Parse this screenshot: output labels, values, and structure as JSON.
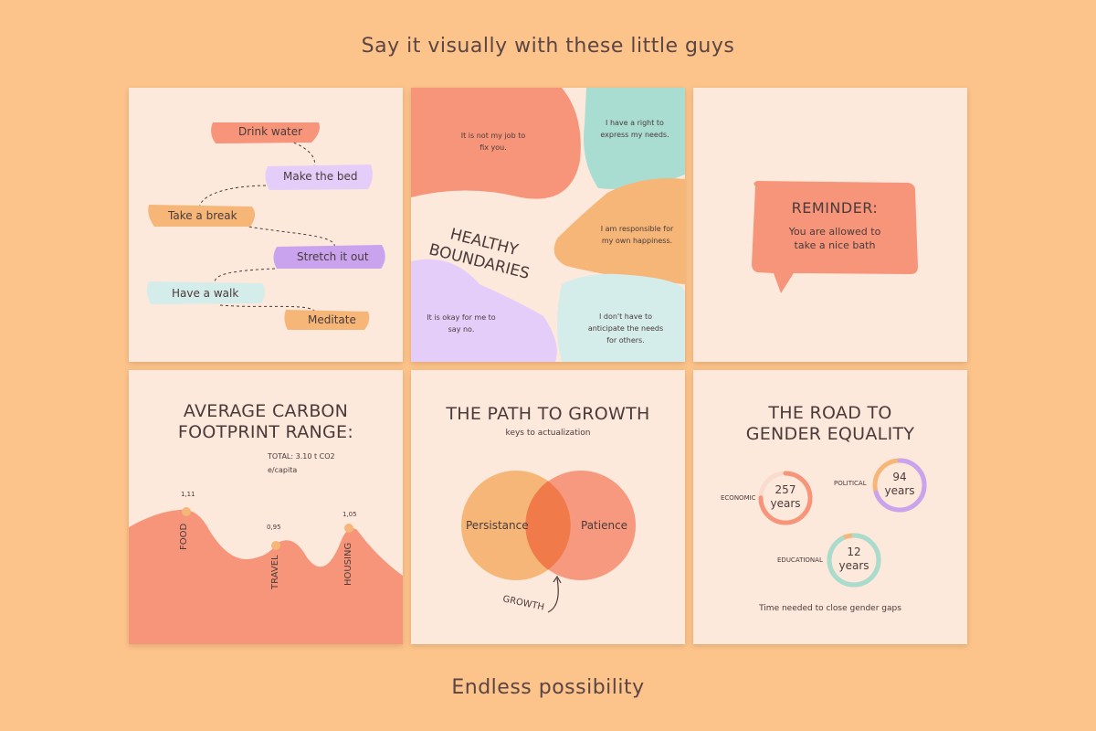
{
  "header": {
    "title": "Say it visually with these little guys"
  },
  "footer": {
    "caption": "Endless possibility"
  },
  "todo_card": {
    "items": [
      "Drink water",
      "Make the bed",
      "Take a break",
      "Stretch it out",
      "Have a walk",
      "Meditate"
    ]
  },
  "boundaries_card": {
    "title_line1": "HEALTHY",
    "title_line2": "BOUNDARIES",
    "blobs": [
      {
        "line1": "It is not my job to",
        "line2": "fix you.",
        "line3": ""
      },
      {
        "line1": "I have a right to",
        "line2": "express my needs.",
        "line3": ""
      },
      {
        "line1": "I am responsible for",
        "line2": "my own happiness.",
        "line3": ""
      },
      {
        "line1": "It is okay for me to",
        "line2": "say no.",
        "line3": ""
      },
      {
        "line1": "I don't have to",
        "line2": "anticipate the needs",
        "line3": "for others."
      }
    ]
  },
  "reminder_card": {
    "title": "REMINDER:",
    "line1": "You are allowed to",
    "line2": "take a nice bath"
  },
  "carbon_card": {
    "title_line1": "AVERAGE CARBON",
    "title_line2": "FOOTPRINT RANGE:",
    "total_line1": "TOTAL: 3.10 t CO2",
    "total_line2": "e/capita",
    "points": [
      {
        "label": "FOOD",
        "value": "1,11"
      },
      {
        "label": "TRAVEL",
        "value": "0,95"
      },
      {
        "label": "HOUSING",
        "value": "1,05"
      }
    ]
  },
  "growth_card": {
    "title": "THE PATH TO GROWTH",
    "subtitle": "keys to actualization",
    "left_label": "Persistance",
    "right_label": "Patience",
    "intersection_label": "GROWTH"
  },
  "gender_card": {
    "title_line1": "THE ROAD TO",
    "title_line2": "GENDER EQUALITY",
    "rings": [
      {
        "category": "ECONOMIC",
        "number": "257",
        "unit": "years",
        "color": "#f7957a",
        "progress": 0.75
      },
      {
        "category": "POLITICAL",
        "number": "94",
        "unit": "years",
        "color": "#c9a3ee",
        "progress": 0.7
      },
      {
        "category": "EDUCATIONAL",
        "number": "12",
        "unit": "years",
        "color": "#a7dccf",
        "progress": 0.92
      }
    ],
    "footnote": "Time needed to close gender gaps"
  },
  "colors": {
    "background": "#fcc48b",
    "card": "#fde9db",
    "coral": "#f7957a",
    "orange": "#f5b678",
    "lavender": "#e5cdfa",
    "purple": "#c9a3ee",
    "mint": "#a9ddd2",
    "light_blue": "#d4ecea"
  }
}
